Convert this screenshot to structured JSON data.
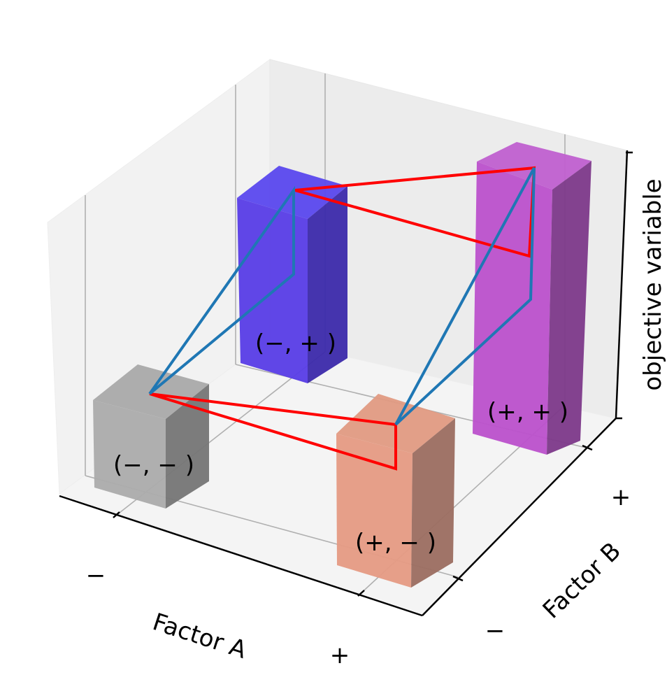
{
  "chart_data": {
    "type": "bar3d",
    "title": "",
    "xlabel": "Factor A",
    "ylabel": "Factor B",
    "zlabel": "objective variable",
    "x_ticks": [
      "−",
      "+"
    ],
    "y_ticks": [
      "−",
      "+"
    ],
    "grid": true,
    "bars": [
      {
        "label": "(−, − )",
        "a": "−",
        "b": "−",
        "value": 1.0,
        "color": "#a0a0a0"
      },
      {
        "label": "(−, + )",
        "a": "−",
        "b": "+",
        "value": 2.3,
        "color": "#4a34e0"
      },
      {
        "label": "(+, − )",
        "a": "+",
        "b": "−",
        "value": 2.0,
        "color": "#e0947c"
      },
      {
        "label": "(+, + )",
        "a": "+",
        "b": "+",
        "value": 3.4,
        "color": "#b04cc4"
      }
    ],
    "interaction_lines": [
      {
        "name": "",
        "color": "#ff0000"
      },
      {
        "name": "",
        "color": "#1f77b4"
      }
    ]
  }
}
